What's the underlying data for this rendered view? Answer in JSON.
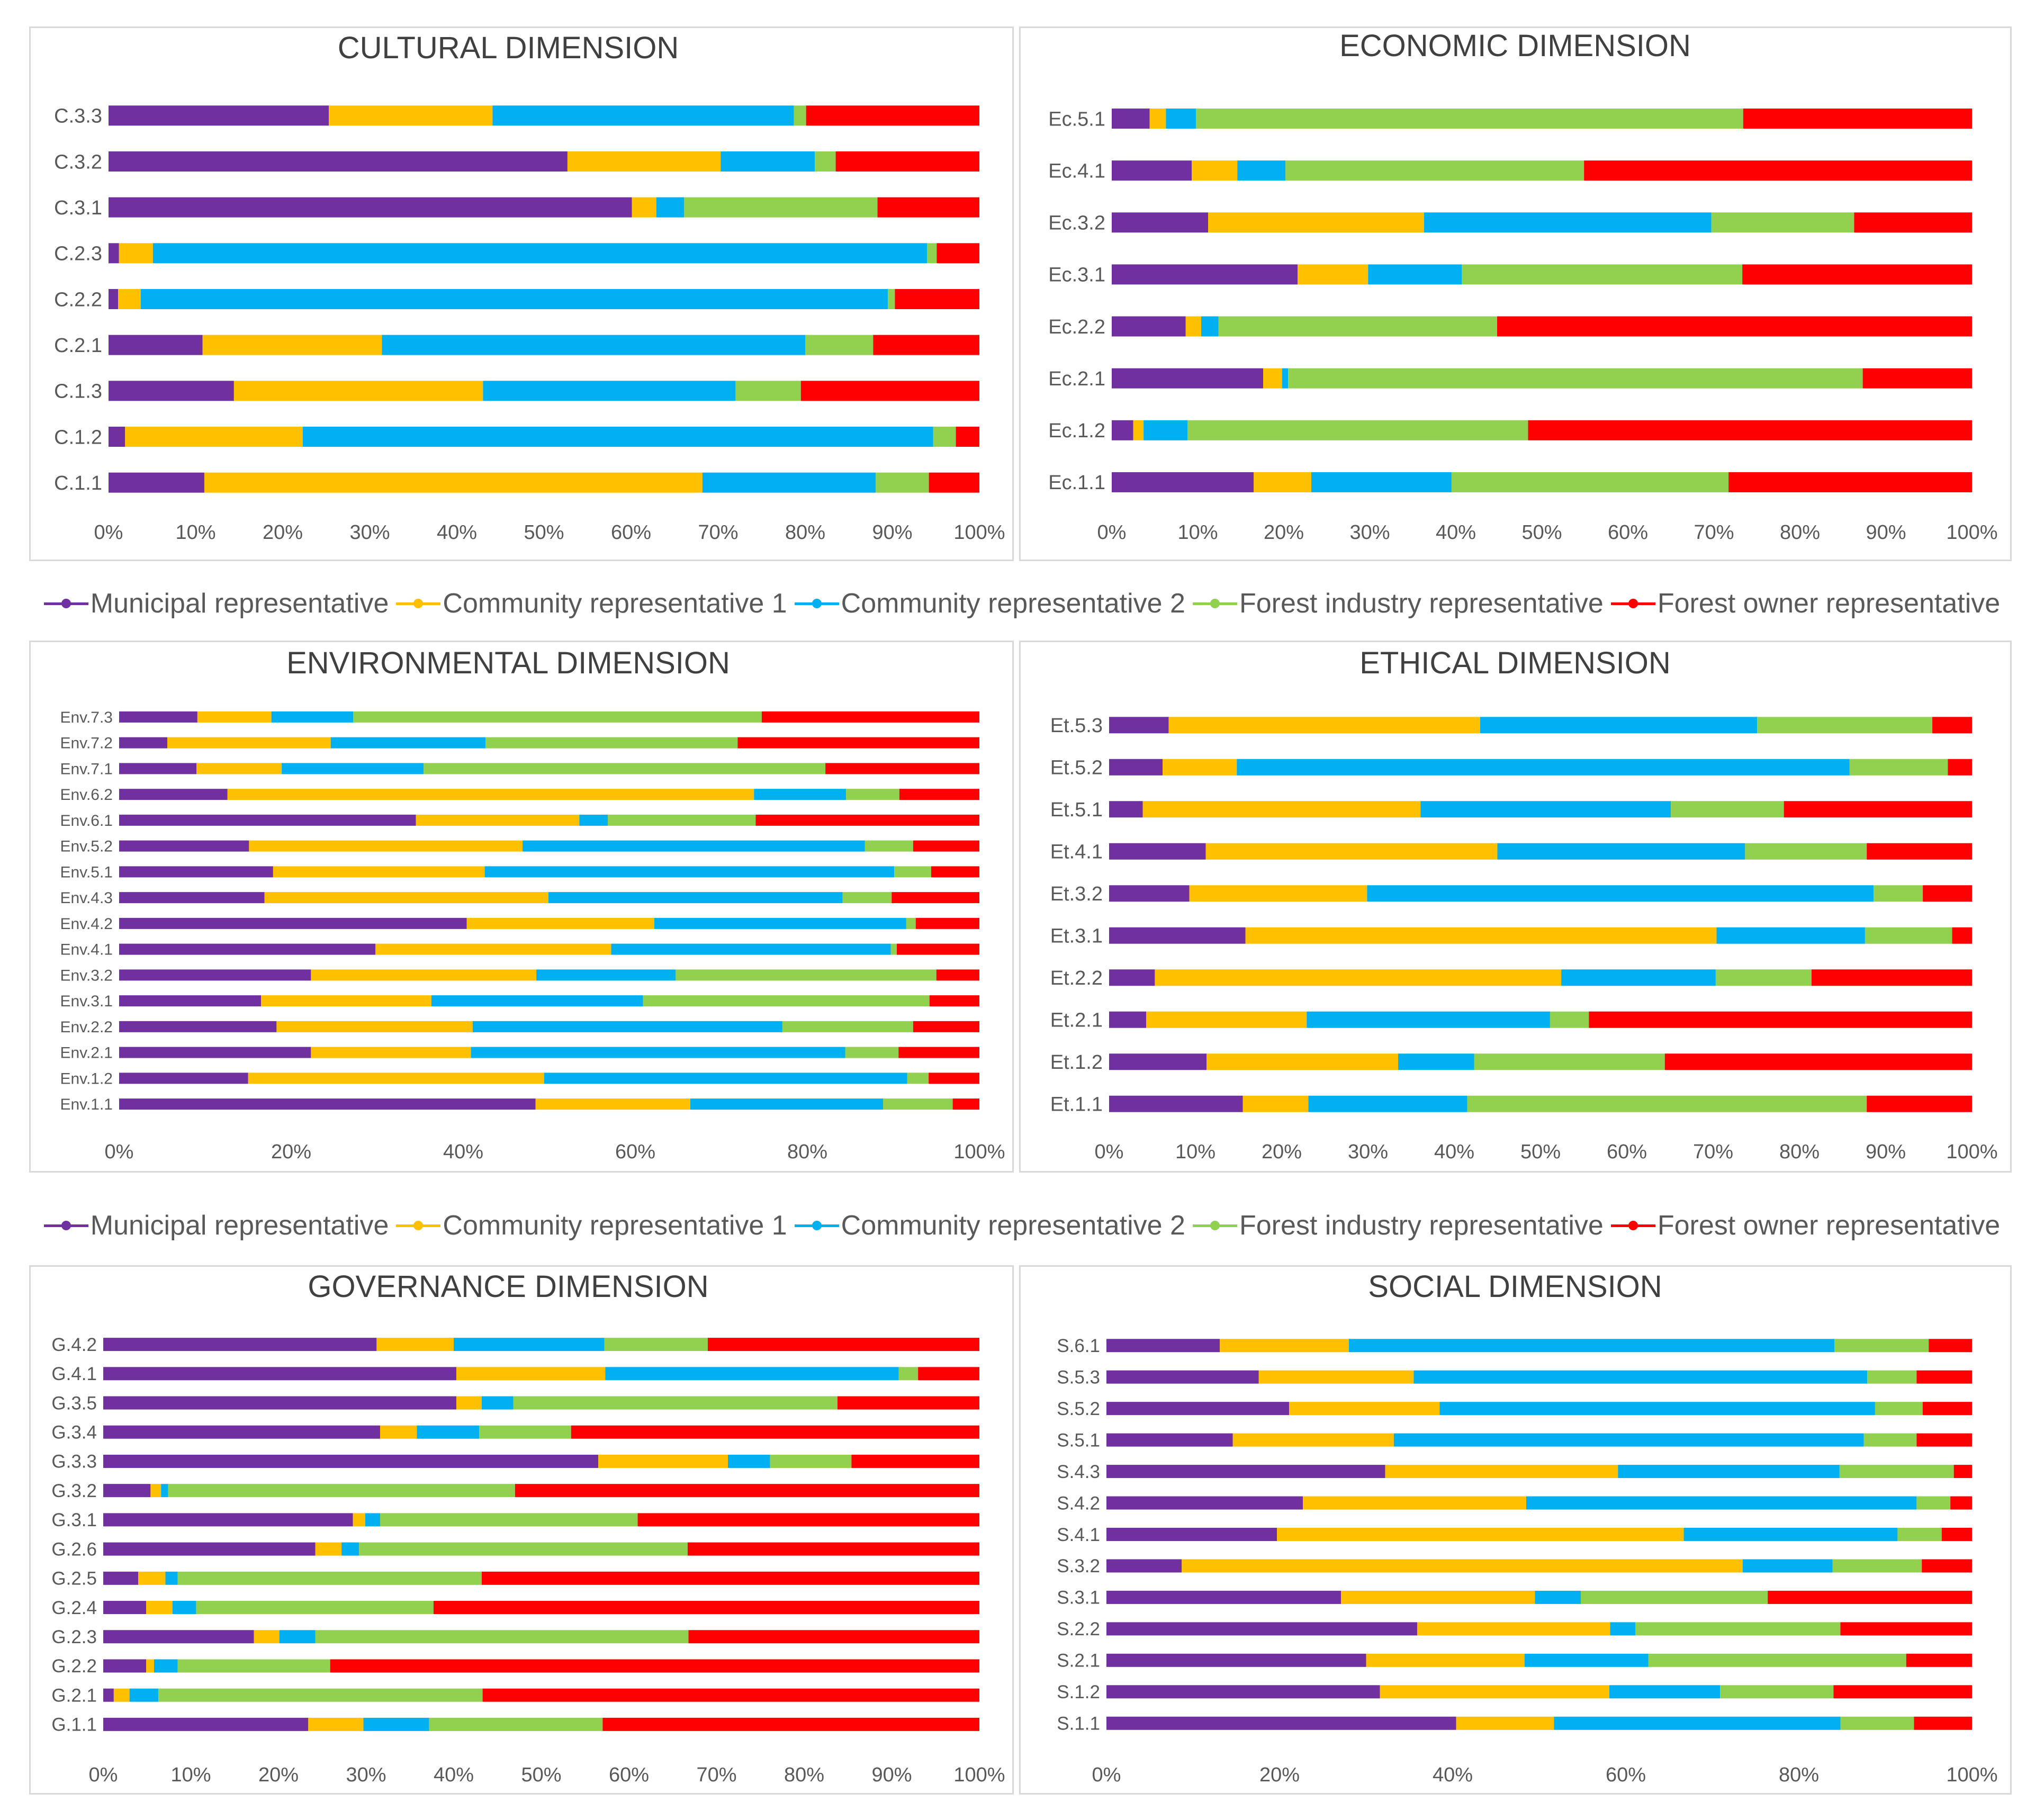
{
  "colors": {
    "Municipal representative": "#7030a0",
    "Community representative 1": "#ffc000",
    "Community representative 2": "#00b0f0",
    "Forest industry representative": "#92d050",
    "Forest owner representative": "#ff0000"
  },
  "legends": [
    {
      "items": [
        "Municipal representative",
        "Community representative 1",
        "Community representative 2",
        "Forest industry representative",
        "Forest owner representative"
      ]
    },
    {
      "items": [
        "Municipal representative",
        "Community representative 1",
        "Community representative 2",
        "Forest industry representative",
        "Forest owner representative"
      ]
    }
  ],
  "chart_data": [
    {
      "id": "cultural",
      "type": "bar",
      "stacked": "100%",
      "orientation": "horizontal",
      "title": "CULTURAL DIMENSION",
      "xlim": [
        0,
        100
      ],
      "xticks": [
        "0%",
        "10%",
        "20%",
        "30%",
        "40%",
        "50%",
        "60%",
        "70%",
        "80%",
        "90%",
        "100%"
      ],
      "categories": [
        "C.3.3",
        "C.3.2",
        "C.3.1",
        "C.2.3",
        "C.2.2",
        "C.2.1",
        "C.1.3",
        "C.1.2",
        "C.1.1"
      ],
      "series": [
        {
          "name": "Municipal representative",
          "values": [
            25.3,
            52.7,
            60.1,
            1.2,
            1.1,
            10.8,
            14.4,
            1.9,
            11.0
          ]
        },
        {
          "name": "Community representative 1",
          "values": [
            18.8,
            17.6,
            2.8,
            3.9,
            2.6,
            20.6,
            28.6,
            20.4,
            57.2
          ]
        },
        {
          "name": "Community representative 2",
          "values": [
            34.6,
            10.8,
            3.2,
            88.9,
            85.8,
            48.6,
            29.0,
            72.4,
            19.9
          ]
        },
        {
          "name": "Forest industry representative",
          "values": [
            1.4,
            2.4,
            22.2,
            1.1,
            0.8,
            7.8,
            7.5,
            2.6,
            6.1
          ]
        },
        {
          "name": "Forest owner representative",
          "values": [
            19.9,
            16.5,
            11.7,
            4.9,
            9.7,
            12.2,
            20.5,
            2.7,
            5.8
          ]
        }
      ]
    },
    {
      "id": "economic",
      "type": "bar",
      "stacked": "100%",
      "orientation": "horizontal",
      "title": "ECONOMIC DIMENSION",
      "xlim": [
        0,
        100
      ],
      "xticks": [
        "0%",
        "10%",
        "20%",
        "30%",
        "40%",
        "50%",
        "60%",
        "70%",
        "80%",
        "90%",
        "100%"
      ],
      "categories": [
        "Ec.5.1",
        "Ec.4.1",
        "Ec.3.2",
        "Ec.3.1",
        "Ec.2.2",
        "Ec.2.1",
        "Ec.1.2",
        "Ec.1.1"
      ],
      "series": [
        {
          "name": "Municipal representative",
          "values": [
            4.4,
            9.3,
            11.2,
            21.6,
            8.6,
            17.6,
            2.5,
            16.5
          ]
        },
        {
          "name": "Community representative 1",
          "values": [
            1.9,
            5.3,
            25.1,
            8.2,
            1.8,
            2.2,
            1.2,
            6.7
          ]
        },
        {
          "name": "Community representative 2",
          "values": [
            3.5,
            5.6,
            33.4,
            10.9,
            2.0,
            0.7,
            5.1,
            16.3
          ]
        },
        {
          "name": "Forest industry representative",
          "values": [
            63.6,
            34.7,
            16.6,
            32.6,
            32.4,
            66.8,
            39.6,
            32.2
          ]
        },
        {
          "name": "Forest owner representative",
          "values": [
            26.6,
            45.1,
            13.7,
            26.7,
            55.2,
            12.7,
            51.6,
            28.3
          ]
        }
      ]
    },
    {
      "id": "environmental",
      "type": "bar",
      "stacked": "100%",
      "orientation": "horizontal",
      "title": "ENVIRONMENTAL DIMENSION",
      "xlim": [
        0,
        100
      ],
      "xticks": [
        "0%",
        "20%",
        "40%",
        "60%",
        "80%",
        "100%"
      ],
      "categories": [
        "Env.7.3",
        "Env.7.2",
        "Env.7.1",
        "Env.6.2",
        "Env.6.1",
        "Env.5.2",
        "Env.5.1",
        "Env.4.3",
        "Env.4.2",
        "Env.4.1",
        "Env.3.2",
        "Env.3.1",
        "Env.2.2",
        "Env.2.1",
        "Env.1.2",
        "Env.1.1"
      ],
      "series": [
        {
          "name": "Municipal representative",
          "values": [
            9.1,
            5.6,
            9.0,
            12.6,
            34.5,
            15.1,
            17.9,
            16.9,
            40.4,
            29.8,
            22.3,
            16.5,
            18.3,
            22.3,
            15.0,
            48.4
          ]
        },
        {
          "name": "Community representative 1",
          "values": [
            8.6,
            19.0,
            9.9,
            61.2,
            19.0,
            31.8,
            24.6,
            33.0,
            21.8,
            27.4,
            26.2,
            19.8,
            22.8,
            18.6,
            34.4,
            18.0
          ]
        },
        {
          "name": "Community representative 2",
          "values": [
            9.5,
            18.0,
            16.5,
            10.7,
            3.3,
            39.8,
            47.6,
            34.2,
            29.3,
            32.5,
            16.2,
            24.6,
            36.0,
            43.5,
            42.2,
            22.4
          ]
        },
        {
          "name": "Forest industry representative",
          "values": [
            47.5,
            29.3,
            46.7,
            6.2,
            17.2,
            5.6,
            4.3,
            5.7,
            1.1,
            0.7,
            30.3,
            33.3,
            15.2,
            6.2,
            2.5,
            8.1
          ]
        },
        {
          "name": "Forest owner representative",
          "values": [
            25.3,
            28.1,
            17.9,
            9.3,
            26.0,
            7.7,
            5.6,
            10.2,
            7.4,
            9.6,
            5.0,
            5.8,
            7.7,
            9.4,
            5.9,
            3.1
          ]
        }
      ]
    },
    {
      "id": "ethical",
      "type": "bar",
      "stacked": "100%",
      "orientation": "horizontal",
      "title": "ETHICAL DIMENSION",
      "xlim": [
        0,
        100
      ],
      "xticks": [
        "0%",
        "10%",
        "20%",
        "30%",
        "40%",
        "50%",
        "60%",
        "70%",
        "80%",
        "90%",
        "100%"
      ],
      "categories": [
        "Et.5.3",
        "Et.5.2",
        "Et.5.1",
        "Et.4.1",
        "Et.3.2",
        "Et.3.1",
        "Et.2.2",
        "Et.2.1",
        "Et.1.2",
        "Et.1.1"
      ],
      "series": [
        {
          "name": "Municipal representative",
          "values": [
            6.9,
            6.2,
            3.9,
            11.2,
            9.3,
            15.8,
            5.3,
            4.3,
            11.3,
            15.5
          ]
        },
        {
          "name": "Community representative 1",
          "values": [
            36.1,
            8.6,
            32.2,
            33.8,
            20.6,
            54.6,
            47.1,
            18.6,
            22.2,
            7.6
          ]
        },
        {
          "name": "Community representative 2",
          "values": [
            32.1,
            71.0,
            29.0,
            28.7,
            58.7,
            17.2,
            17.9,
            28.2,
            8.8,
            18.4
          ]
        },
        {
          "name": "Forest industry representative",
          "values": [
            20.3,
            11.4,
            13.1,
            14.1,
            5.7,
            10.1,
            11.1,
            4.5,
            22.1,
            46.3
          ]
        },
        {
          "name": "Forest owner representative",
          "values": [
            4.6,
            2.8,
            21.8,
            12.2,
            5.7,
            2.3,
            18.6,
            44.4,
            35.6,
            12.2
          ]
        }
      ]
    },
    {
      "id": "governance",
      "type": "bar",
      "stacked": "100%",
      "orientation": "horizontal",
      "title": "GOVERNANCE DIMENSION",
      "xlim": [
        0,
        100
      ],
      "xticks": [
        "0%",
        "10%",
        "20%",
        "30%",
        "40%",
        "50%",
        "60%",
        "70%",
        "80%",
        "90%",
        "100%"
      ],
      "categories": [
        "G.4.2",
        "G.4.1",
        "G.3.5",
        "G.3.4",
        "G.3.3",
        "G.3.2",
        "G.3.1",
        "G.2.6",
        "G.2.5",
        "G.2.4",
        "G.2.3",
        "G.2.2",
        "G.2.1",
        "G.1.1"
      ],
      "series": [
        {
          "name": "Municipal representative",
          "values": [
            31.2,
            40.3,
            40.3,
            31.6,
            56.5,
            5.4,
            28.5,
            24.2,
            4.0,
            4.9,
            17.2,
            4.9,
            1.2,
            23.4
          ]
        },
        {
          "name": "Community representative 1",
          "values": [
            8.8,
            17.0,
            2.9,
            4.2,
            14.8,
            1.2,
            1.4,
            3.0,
            3.1,
            3.0,
            2.9,
            0.9,
            1.8,
            6.3
          ]
        },
        {
          "name": "Community representative 2",
          "values": [
            17.2,
            33.5,
            3.6,
            7.1,
            4.8,
            0.8,
            1.7,
            2.0,
            1.4,
            2.7,
            4.1,
            2.7,
            3.3,
            7.5
          ]
        },
        {
          "name": "Forest industry representative",
          "values": [
            11.8,
            2.2,
            37.0,
            10.5,
            9.3,
            39.6,
            29.4,
            37.5,
            34.7,
            27.1,
            42.6,
            17.4,
            37.0,
            19.8
          ]
        },
        {
          "name": "Forest owner representative",
          "values": [
            31.0,
            7.0,
            16.2,
            46.6,
            14.6,
            53.0,
            39.0,
            33.3,
            56.8,
            62.3,
            33.2,
            74.1,
            56.7,
            43.0
          ]
        }
      ]
    },
    {
      "id": "social",
      "type": "bar",
      "stacked": "100%",
      "orientation": "horizontal",
      "title": "SOCIAL DIMENSION",
      "xlim": [
        0,
        100
      ],
      "xticks": [
        "0%",
        "20%",
        "40%",
        "60%",
        "80%",
        "100%"
      ],
      "categories": [
        "S.6.1",
        "S.5.3",
        "S.5.2",
        "S.5.1",
        "S.4.3",
        "S.4.2",
        "S.4.1",
        "S.3.2",
        "S.3.1",
        "S.2.2",
        "S.2.1",
        "S.1.2",
        "S.1.1"
      ],
      "series": [
        {
          "name": "Municipal representative",
          "values": [
            13.1,
            17.6,
            21.1,
            14.6,
            32.2,
            22.7,
            19.7,
            8.7,
            27.1,
            35.9,
            30.0,
            31.6,
            40.4
          ]
        },
        {
          "name": "Community representative 1",
          "values": [
            14.9,
            17.9,
            17.4,
            18.6,
            26.9,
            25.8,
            47.0,
            64.8,
            22.4,
            22.3,
            18.3,
            26.5,
            11.3
          ]
        },
        {
          "name": "Community representative 2",
          "values": [
            56.1,
            52.4,
            50.3,
            54.3,
            25.6,
            45.1,
            24.7,
            10.4,
            5.3,
            2.9,
            14.3,
            12.8,
            33.1
          ]
        },
        {
          "name": "Forest industry representative",
          "values": [
            10.9,
            5.7,
            5.5,
            6.1,
            13.2,
            3.9,
            5.1,
            10.3,
            21.6,
            23.7,
            29.8,
            13.1,
            8.5
          ]
        },
        {
          "name": "Forest owner representative",
          "values": [
            5.0,
            6.4,
            5.7,
            6.4,
            2.1,
            2.5,
            3.5,
            5.8,
            23.6,
            15.2,
            7.6,
            16.0,
            6.7
          ]
        }
      ]
    }
  ]
}
